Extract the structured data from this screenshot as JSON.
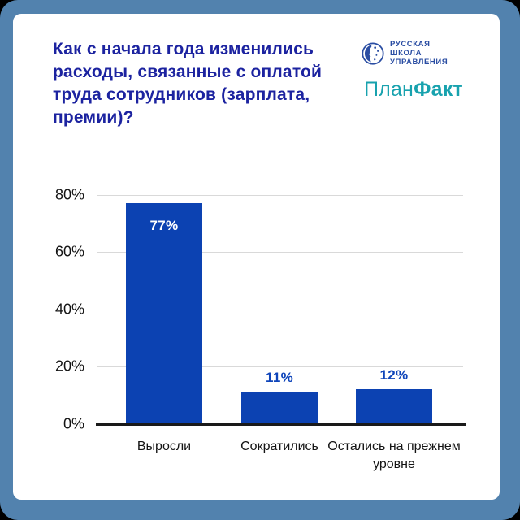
{
  "frame": {
    "outer_corner_bg": "#000000",
    "border_color": "#5282ae",
    "card_color": "#ffffff"
  },
  "header": {
    "title": "Как с начала года изменились расходы, связанные с оплатой труда сотрудников (зарплата, премии)?",
    "title_color": "#1c23a0"
  },
  "logos": {
    "rshu_line1": "РУССКАЯ",
    "rshu_line2": "ШКОЛА",
    "rshu_line3": "УПРАВЛЕНИЯ",
    "rshu_color": "#2b4ea3",
    "planfact_plan": "План",
    "planfact_fakt": "Факт",
    "planfact_color": "#18a2ae"
  },
  "chart_data": {
    "type": "bar",
    "title": "",
    "categories": [
      "Выросли",
      "Сократились",
      "Остались на прежнем уровне"
    ],
    "values": [
      77,
      11,
      12
    ],
    "value_labels": [
      "77%",
      "11%",
      "12%"
    ],
    "y_ticks": [
      "80%",
      "60%",
      "40%",
      "20%",
      "0%"
    ],
    "y_tick_values": [
      80,
      60,
      40,
      20,
      0
    ],
    "ylim": [
      0,
      80
    ],
    "grid": true,
    "legend": false,
    "bar_color": "#0c42b2",
    "value_label_color_inside": "#ffffff",
    "value_label_color_outside": "#0f45ba",
    "axis_color": "#1a1a1a",
    "gridline_color": "#d9d9d9"
  }
}
